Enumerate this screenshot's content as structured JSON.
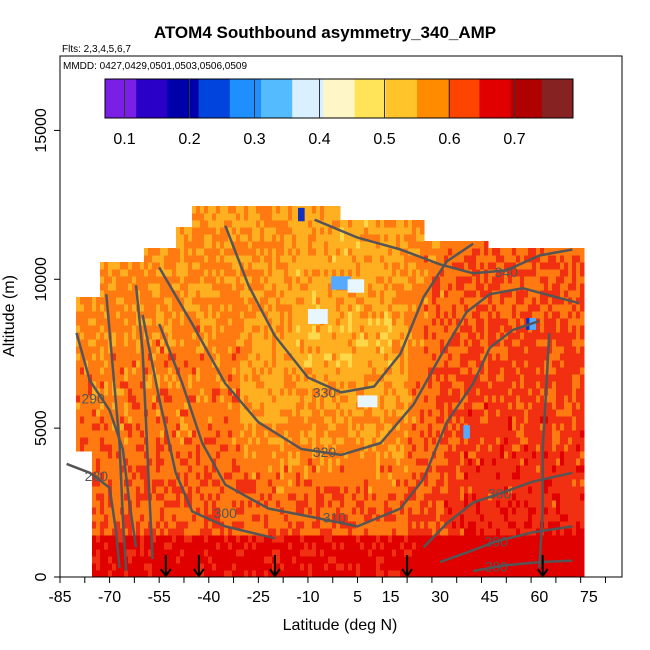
{
  "chart_data": {
    "type": "heatmap",
    "title": "ATOM4 Southbound asymmetry_340_AMP",
    "flights_note": "Flts: 2,3,4,5,6,7",
    "dates_note": "MMDD: 0427,0429,0501,0503,0506,0509",
    "xlabel": "Latitude (deg N)",
    "ylabel": "Altitude (m)",
    "xlim": [
      -85,
      85
    ],
    "ylim": [
      0,
      17500
    ],
    "x_ticks": [
      -85,
      -70,
      -55,
      -40,
      -25,
      -10,
      5,
      15,
      30,
      45,
      60,
      75
    ],
    "y_ticks": [
      0,
      5000,
      10000,
      15000
    ],
    "colorbar": {
      "range": [
        0.07,
        0.79
      ],
      "ticks": [
        0.1,
        0.2,
        0.3,
        0.4,
        0.5,
        0.6,
        0.7
      ],
      "tick_labels": [
        "0.1",
        "0.2",
        "0.3",
        "0.4",
        "0.5",
        "0.6",
        "0.7"
      ],
      "colors": [
        "#7a1fe6",
        "#2a00c8",
        "#0000aa",
        "#0044dd",
        "#1f8fff",
        "#55bbff",
        "#d8f0ff",
        "#fff6c8",
        "#ffe45a",
        "#ffc42a",
        "#ff8c00",
        "#ff4400",
        "#e00000",
        "#b00000",
        "#862222"
      ]
    },
    "field_colors": {
      "low": "#fff3b0",
      "mid_low": "#ffd84a",
      "mid": "#ffb020",
      "mid_high": "#ff7a10",
      "high": "#f03010",
      "very_high": "#e00000",
      "anomaly_blue": "#55aaff",
      "anomaly_dark_blue": "#1030c0",
      "anomaly_white": "#e8f6ff"
    },
    "contour_color": "#555555",
    "contour_labels": [
      {
        "text": "340",
        "lat": 50,
        "alt": 10250
      },
      {
        "text": "330",
        "lat": -5,
        "alt": 6200
      },
      {
        "text": "320",
        "lat": -5,
        "alt": 4200
      },
      {
        "text": "310",
        "lat": -2,
        "alt": 2000
      },
      {
        "text": "300",
        "lat": -35,
        "alt": 2150
      },
      {
        "text": "300",
        "lat": 48,
        "alt": 2800
      },
      {
        "text": "290",
        "lat": -75,
        "alt": 6000
      },
      {
        "text": "290",
        "lat": 47,
        "alt": 1200
      },
      {
        "text": "280",
        "lat": -74,
        "alt": 3400
      },
      {
        "text": "280",
        "lat": 47,
        "alt": 350
      }
    ],
    "profile_arrows_lat": [
      -53,
      -43,
      -20,
      20,
      61
    ],
    "contours": [
      {
        "level": 340,
        "points": [
          [
            -8,
            12000
          ],
          [
            5,
            11400
          ],
          [
            18,
            11000
          ],
          [
            30,
            10500
          ],
          [
            40,
            10200
          ],
          [
            50,
            10300
          ],
          [
            60,
            10800
          ],
          [
            70,
            11000
          ]
        ]
      },
      {
        "level": 330,
        "points": [
          [
            -35,
            11800
          ],
          [
            -28,
            9800
          ],
          [
            -20,
            8100
          ],
          [
            -10,
            6700
          ],
          [
            0,
            6200
          ],
          [
            10,
            6400
          ],
          [
            18,
            7500
          ],
          [
            25,
            9400
          ],
          [
            32,
            10600
          ],
          [
            40,
            11200
          ]
        ]
      },
      {
        "level": 320,
        "points": [
          [
            -55,
            10400
          ],
          [
            -45,
            8500
          ],
          [
            -35,
            6500
          ],
          [
            -25,
            5200
          ],
          [
            -12,
            4300
          ],
          [
            0,
            4100
          ],
          [
            12,
            4500
          ],
          [
            22,
            5800
          ],
          [
            30,
            7400
          ],
          [
            38,
            8900
          ],
          [
            45,
            9500
          ],
          [
            55,
            9700
          ],
          [
            65,
            9400
          ],
          [
            72,
            9200
          ]
        ]
      },
      {
        "level": 310,
        "points": [
          [
            -55,
            8500
          ],
          [
            -48,
            6500
          ],
          [
            -42,
            4500
          ],
          [
            -35,
            3100
          ],
          [
            -22,
            2300
          ],
          [
            -8,
            2000
          ],
          [
            5,
            1700
          ],
          [
            18,
            2300
          ],
          [
            25,
            3300
          ],
          [
            32,
            5200
          ],
          [
            40,
            6500
          ],
          [
            45,
            7700
          ],
          [
            52,
            8300
          ],
          [
            60,
            8600
          ]
        ]
      },
      {
        "level": 300,
        "points": [
          [
            -60,
            8800
          ],
          [
            -55,
            6000
          ],
          [
            -50,
            3500
          ],
          [
            -45,
            2200
          ],
          [
            -35,
            1700
          ],
          [
            -20,
            1300
          ]
        ]
      },
      {
        "level": 300,
        "points": [
          [
            25,
            1000
          ],
          [
            32,
            1800
          ],
          [
            40,
            2500
          ],
          [
            48,
            2800
          ],
          [
            58,
            3200
          ],
          [
            70,
            3500
          ]
        ]
      },
      {
        "level": 290,
        "points": [
          [
            -80,
            8200
          ],
          [
            -76,
            6600
          ],
          [
            -70,
            5600
          ],
          [
            -66,
            4300
          ],
          [
            -64,
            2500
          ],
          [
            -62,
            1000
          ]
        ]
      },
      {
        "level": 290,
        "points": [
          [
            30,
            500
          ],
          [
            40,
            900
          ],
          [
            47,
            1200
          ],
          [
            58,
            1500
          ],
          [
            70,
            1700
          ]
        ]
      },
      {
        "level": 280,
        "points": [
          [
            -83,
            3800
          ],
          [
            -76,
            3500
          ],
          [
            -70,
            3000
          ],
          [
            -68,
            1500
          ],
          [
            -67,
            300
          ]
        ]
      },
      {
        "level": 280,
        "points": [
          [
            40,
            200
          ],
          [
            50,
            400
          ],
          [
            60,
            500
          ],
          [
            70,
            550
          ]
        ]
      },
      {
        "level": 300,
        "points": [
          [
            -71,
            9500
          ],
          [
            -69,
            7000
          ],
          [
            -67,
            4500
          ],
          [
            -66,
            2000
          ],
          [
            -65,
            200
          ]
        ]
      },
      {
        "level": 300,
        "points": [
          [
            -62,
            9800
          ],
          [
            -60,
            7600
          ],
          [
            -59,
            5200
          ],
          [
            -58,
            2800
          ],
          [
            -57,
            600
          ]
        ]
      },
      {
        "level": 320,
        "points": [
          [
            63,
            8200
          ],
          [
            62,
            6200
          ],
          [
            61,
            4300
          ],
          [
            61,
            2200
          ],
          [
            60,
            300
          ]
        ]
      }
    ]
  }
}
